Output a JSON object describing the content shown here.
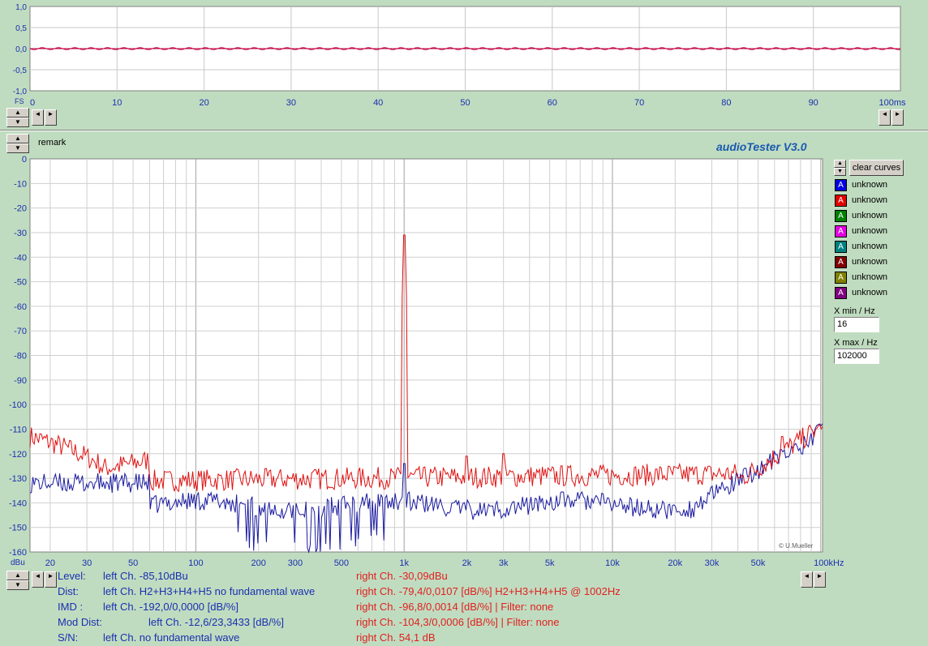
{
  "scope": {
    "y_ticks": [
      "1,0",
      "0,5",
      "0,0",
      "-0,5",
      "-1,0"
    ],
    "x_ticks": [
      "0",
      "10",
      "20",
      "30",
      "40",
      "50",
      "60",
      "70",
      "80",
      "90",
      "100ms"
    ],
    "fs_label": "FS"
  },
  "remark_label": "remark",
  "app_title": "audioTester  V3.0",
  "copyright": "© U.Mueller",
  "legend": {
    "clear_curves": "clear curves",
    "items": [
      {
        "glyph": "A",
        "label": "unknown",
        "color": "#0000e0"
      },
      {
        "glyph": "A",
        "label": "unknown",
        "color": "#e00000"
      },
      {
        "glyph": "A",
        "label": "unknown",
        "color": "#008000"
      },
      {
        "glyph": "A",
        "label": "unknown",
        "color": "#e000e0"
      },
      {
        "glyph": "A",
        "label": "unknown",
        "color": "#008080"
      },
      {
        "glyph": "A",
        "label": "unknown",
        "color": "#800000"
      },
      {
        "glyph": "A",
        "label": "unknown",
        "color": "#808000"
      },
      {
        "glyph": "A",
        "label": "unknown",
        "color": "#800080"
      }
    ]
  },
  "xrange": {
    "min_label": "X min / Hz",
    "min_value": "16",
    "max_label": "X max / Hz",
    "max_value": "102000"
  },
  "spectrum": {
    "y_unit": "dBu",
    "y_ticks": [
      "0",
      "-10",
      "-20",
      "-30",
      "-40",
      "-50",
      "-60",
      "-70",
      "-80",
      "-90",
      "-100",
      "-110",
      "-120",
      "-130",
      "-140",
      "-150",
      "-160"
    ],
    "x_ticks": [
      "20",
      "30",
      "50",
      "100",
      "200",
      "300",
      "500",
      "1k",
      "2k",
      "3k",
      "5k",
      "10k",
      "20k",
      "30k",
      "50k",
      "100kHz"
    ]
  },
  "measurements": {
    "level": {
      "label": "Level:",
      "left": "left Ch. -85,10dBu",
      "right": "right Ch. -30,09dBu"
    },
    "dist": {
      "label": "Dist:",
      "left": "left Ch. H2+H3+H4+H5 no fundamental wave",
      "right": "right Ch. -79,4/0,0107 [dB/%] H2+H3+H4+H5 @ 1002Hz"
    },
    "imd": {
      "label": "IMD  :",
      "left": "left Ch. -192,0/0,0000 [dB/%]",
      "right": "right Ch. -96,8/0,0014 [dB/%] |   Filter: none"
    },
    "mod": {
      "label": "Mod Dist:",
      "left": "left Ch. -12,6/23,3433 [dB/%]",
      "right": "right Ch. -104,3/0,0006 [dB/%] |   Filter: none"
    },
    "sn": {
      "label": "S/N:",
      "left": "left Ch.  no fundamental wave",
      "right": "right Ch. 54,1 dB"
    }
  },
  "colors": {
    "left_channel": "#1a1aa0",
    "right_channel": "#e01010",
    "scope_trace": "#c00040"
  }
}
